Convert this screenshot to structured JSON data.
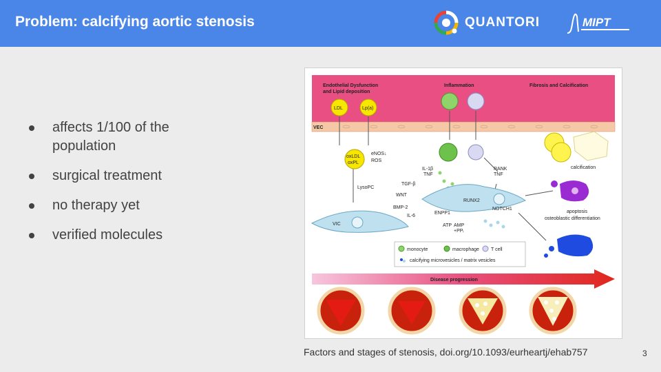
{
  "header": {
    "title": "Problem: calcifying aortic stenosis",
    "logo_quantori": "QUANTORI",
    "logo_mipt": "MIPT",
    "bg_color": "#4a86e8"
  },
  "bullets": [
    "affects 1/100 of the population",
    "surgical treatment",
    "no therapy yet",
    "verified molecules"
  ],
  "figure": {
    "stage_labels": {
      "endothelial": "Endothelial Dysfunction and Lipid deposition",
      "endothelial_line1": "Endothelial Dysfunction",
      "endothelial_line2": "and Lipid deposition",
      "inflammation": "Inflammation",
      "fibrosis": "Fibrosis and Calcification"
    },
    "labels": {
      "ldl": "LDL",
      "lpa": "Lp(a)",
      "vec": "VEC",
      "oxldl": "oxLDL",
      "oxpl": "oxPL",
      "enos": "eNOS↓",
      "ros": "ROS",
      "lysopc": "LysoPC",
      "vic": "VIC",
      "il1b": "IL-1β",
      "tnf": "TNF",
      "tgfb": "TGF-β",
      "wnt": "WNT",
      "bmp2": "BMP-2",
      "il6": "IL-6",
      "runx2": "RUNX2",
      "notch1": "NOTCH1",
      "enpp1": "ENPP1",
      "atp": "ATP",
      "amp": "AMP",
      "ppi": "+PPᵢ",
      "rank": "RANK",
      "tnf2": "TNF",
      "calcification": "calcification",
      "apoptosis": "apoptosis",
      "osteoblastic": "osteoblastic differentiation",
      "disease_progression": "Disease progression"
    },
    "legend": {
      "monocyte": "monocyte",
      "macrophage": "macrophage",
      "tcell": "T cell",
      "vesicles": "calcifying microvesicles / matrix vesicles"
    }
  },
  "caption": "Factors and stages of stenosis, doi.org/10.1093/eurheartj/ehab757",
  "page_number": "3"
}
